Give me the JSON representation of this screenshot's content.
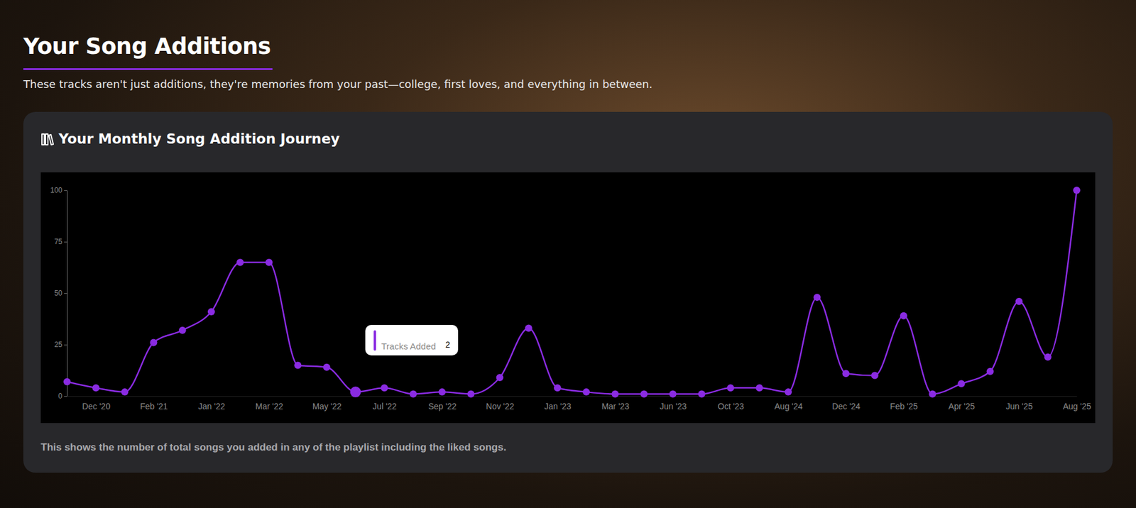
{
  "header": {
    "title": "Your Song Additions",
    "subtitle": "These tracks aren't just additions, they're memories from your past—college, first loves, and everything in between."
  },
  "chart_data": {
    "type": "line",
    "title": "Your Monthly Song Addition Journey",
    "footnote": "This shows the number of total songs you added in any of the playlist including the liked songs.",
    "categories": [
      null,
      "Dec '20",
      null,
      "Feb '21",
      null,
      "Jan '22",
      null,
      "Mar '22",
      null,
      "May '22",
      null,
      "Jul '22",
      null,
      "Sep '22",
      null,
      "Nov '22",
      null,
      "Jan '23",
      null,
      "Mar '23",
      null,
      "Jun '23",
      null,
      "Oct '23",
      null,
      "Aug '24",
      null,
      "Dec '24",
      null,
      "Feb '25",
      null,
      "Apr '25",
      null,
      "Jun '25",
      null,
      "Aug '25"
    ],
    "series": [
      {
        "name": "Tracks Added",
        "color": "#8a2be2",
        "marker": "circle",
        "values": [
          7,
          4,
          2,
          26,
          32,
          41,
          65,
          65,
          15,
          14,
          2,
          4,
          1,
          2,
          1,
          9,
          33,
          4,
          2,
          1,
          1,
          1,
          1,
          4,
          4,
          2,
          48,
          11,
          10,
          39,
          1,
          6,
          12,
          46,
          19,
          100
        ]
      }
    ],
    "highlight": {
      "index": 10
    },
    "ylim": [
      0,
      100
    ],
    "yticks": [
      0,
      25,
      50,
      75,
      100
    ],
    "grid": false
  }
}
